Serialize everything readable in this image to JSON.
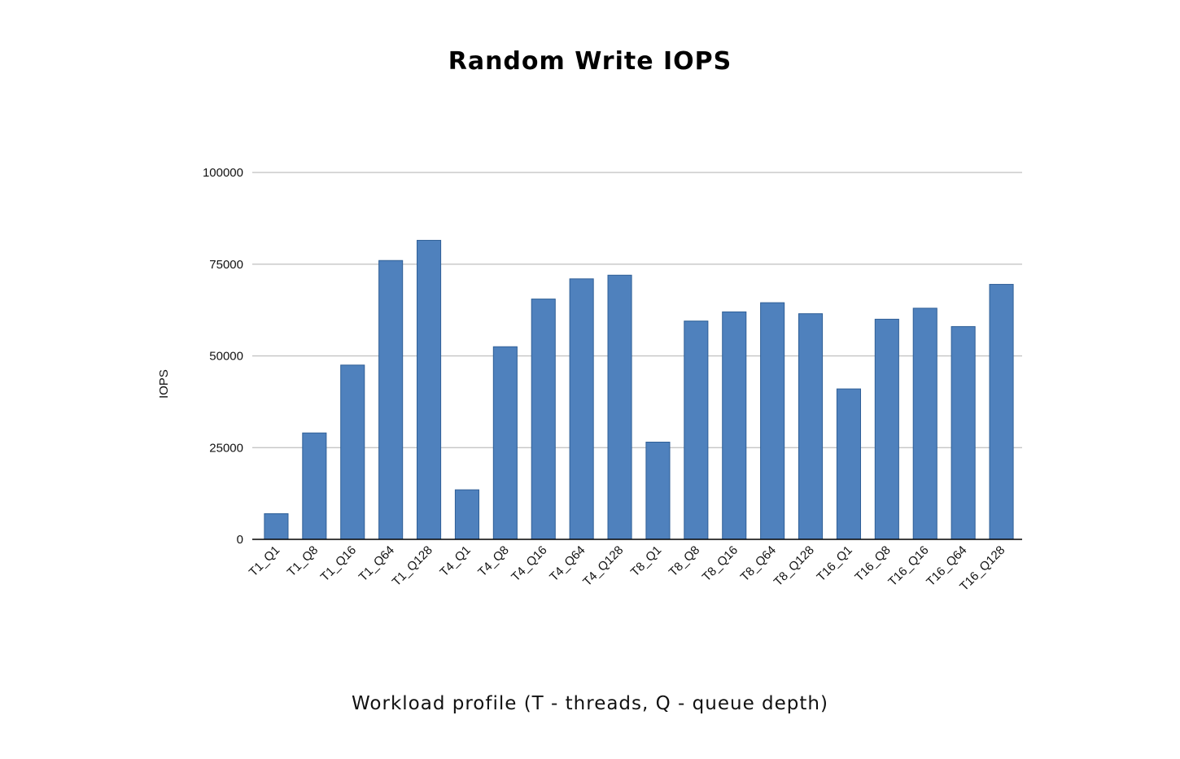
{
  "chart_data": {
    "type": "bar",
    "title": "Random Write IOPS",
    "xlabel": "Workload profile (T - threads, Q - queue depth)",
    "ylabel": "IOPS",
    "ylim": [
      0,
      100000
    ],
    "yticks": [
      0,
      25000,
      50000,
      75000,
      100000
    ],
    "yticks_labels": [
      "0",
      "25000",
      "50000",
      "75000",
      "100000"
    ],
    "grid": true,
    "legend": "none",
    "colors": {
      "bar": "#4f81bd",
      "bar_edge": "#2f5f97",
      "grid": "#bfbfbf",
      "axis": "#000000"
    },
    "categories": [
      "T1_Q1",
      "T1_Q8",
      "T1_Q16",
      "T1_Q64",
      "T1_Q128",
      "T4_Q1",
      "T4_Q8",
      "T4_Q16",
      "T4_Q64",
      "T4_Q128",
      "T8_Q1",
      "T8_Q8",
      "T8_Q16",
      "T8_Q64",
      "T8_Q128",
      "T16_Q1",
      "T16_Q8",
      "T16_Q16",
      "T16_Q64",
      "T16_Q128"
    ],
    "values": [
      7000,
      29000,
      47500,
      76000,
      81500,
      13500,
      52500,
      65500,
      71000,
      72000,
      26500,
      59500,
      62000,
      64500,
      61500,
      41000,
      60000,
      63000,
      58000,
      69500
    ]
  }
}
